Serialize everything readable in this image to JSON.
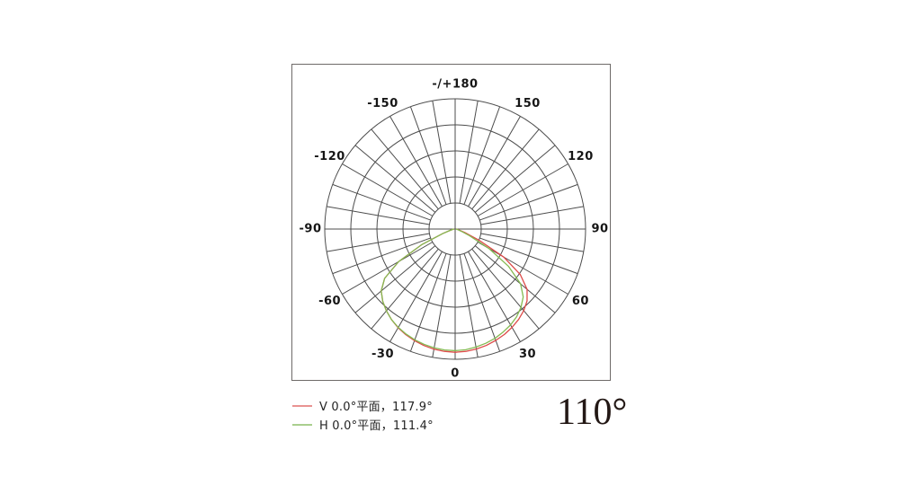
{
  "beam_angle_display": "110°",
  "legend": [
    {
      "label": "V 0.0°平面，117.9°",
      "color": "#dd4a48",
      "swatch_color": "#e99392"
    },
    {
      "label": "H 0.0°平面，111.4°",
      "color": "#84ba52",
      "swatch_color": "#aacf8e"
    }
  ],
  "chart_data": {
    "type": "polar-line",
    "title": "",
    "orientation": "0-degrees-at-bottom, positive angles right, negative angles left",
    "angle_unit": "degrees",
    "radial_axis": "relative luminous intensity, rings at 20/40/60/80/100 %",
    "grid": {
      "rings": 5,
      "ring_step_fraction": 0.2,
      "spoke_step_deg": 10,
      "grid_color": "#4c4c4c",
      "label_color": "#161616"
    },
    "angle_labels": [
      {
        "angle": 0,
        "text": "0"
      },
      {
        "angle": 30,
        "text": "30"
      },
      {
        "angle": 60,
        "text": "60"
      },
      {
        "angle": 90,
        "text": "90"
      },
      {
        "angle": 120,
        "text": "120"
      },
      {
        "angle": 150,
        "text": "150"
      },
      {
        "angle": 180,
        "text": "-/+180"
      },
      {
        "angle": -150,
        "text": "-150"
      },
      {
        "angle": -120,
        "text": "-120"
      },
      {
        "angle": -90,
        "text": "-90"
      },
      {
        "angle": -60,
        "text": "-60"
      },
      {
        "angle": -30,
        "text": "-30"
      }
    ],
    "series": [
      {
        "name": "V 0.0°平面",
        "beam_angle_deg": 117.9,
        "color": "#dd4a48",
        "points": [
          [
            -90,
            0.01
          ],
          [
            -85,
            0.012
          ],
          [
            -80,
            0.02
          ],
          [
            -75,
            0.04
          ],
          [
            -70,
            0.1
          ],
          [
            -65,
            0.28
          ],
          [
            -60,
            0.5
          ],
          [
            -55,
            0.66
          ],
          [
            -50,
            0.74
          ],
          [
            -45,
            0.785
          ],
          [
            -40,
            0.82
          ],
          [
            -35,
            0.85
          ],
          [
            -30,
            0.875
          ],
          [
            -25,
            0.895
          ],
          [
            -20,
            0.912
          ],
          [
            -15,
            0.926
          ],
          [
            -10,
            0.937
          ],
          [
            -5,
            0.943
          ],
          [
            0,
            0.946
          ],
          [
            5,
            0.943
          ],
          [
            10,
            0.936
          ],
          [
            15,
            0.925
          ],
          [
            20,
            0.91
          ],
          [
            25,
            0.893
          ],
          [
            30,
            0.872
          ],
          [
            35,
            0.848
          ],
          [
            40,
            0.818
          ],
          [
            45,
            0.78
          ],
          [
            50,
            0.72
          ],
          [
            55,
            0.61
          ],
          [
            60,
            0.43
          ],
          [
            65,
            0.2
          ],
          [
            70,
            0.08
          ],
          [
            75,
            0.035
          ],
          [
            80,
            0.02
          ],
          [
            85,
            0.012
          ],
          [
            90,
            0.01
          ]
        ]
      },
      {
        "name": "H 0.0°平面",
        "beam_angle_deg": 111.4,
        "color": "#84ba52",
        "points": [
          [
            -90,
            0.01
          ],
          [
            -85,
            0.012
          ],
          [
            -80,
            0.02
          ],
          [
            -75,
            0.04
          ],
          [
            -70,
            0.1
          ],
          [
            -65,
            0.28
          ],
          [
            -60,
            0.5
          ],
          [
            -55,
            0.66
          ],
          [
            -50,
            0.74
          ],
          [
            -45,
            0.785
          ],
          [
            -40,
            0.82
          ],
          [
            -35,
            0.85
          ],
          [
            -30,
            0.872
          ],
          [
            -25,
            0.89
          ],
          [
            -20,
            0.905
          ],
          [
            -15,
            0.917
          ],
          [
            -10,
            0.926
          ],
          [
            -5,
            0.932
          ],
          [
            0,
            0.934
          ],
          [
            5,
            0.93
          ],
          [
            10,
            0.92
          ],
          [
            15,
            0.908
          ],
          [
            20,
            0.893
          ],
          [
            25,
            0.872
          ],
          [
            30,
            0.85
          ],
          [
            35,
            0.822
          ],
          [
            40,
            0.785
          ],
          [
            45,
            0.738
          ],
          [
            50,
            0.655
          ],
          [
            55,
            0.5
          ],
          [
            60,
            0.3
          ],
          [
            65,
            0.12
          ],
          [
            70,
            0.05
          ],
          [
            75,
            0.025
          ],
          [
            80,
            0.015
          ],
          [
            85,
            0.01
          ],
          [
            90,
            0.01
          ]
        ]
      }
    ]
  }
}
